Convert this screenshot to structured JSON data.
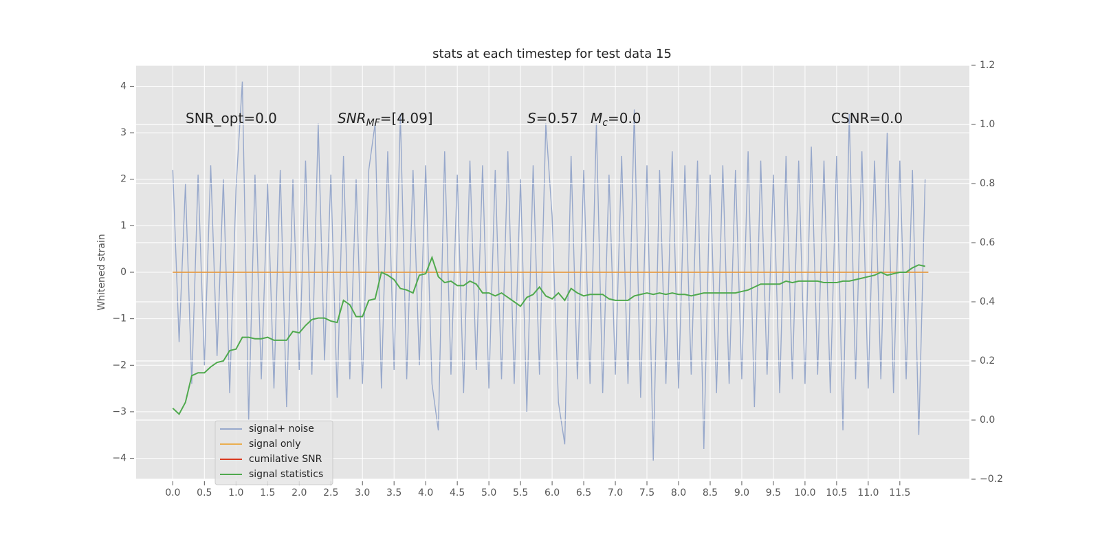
{
  "chart_data": {
    "type": "line",
    "title": "stats at each timestep for test data 15",
    "ylabel": "Whitened strain",
    "annotations": [
      {
        "text": "SNR_opt=0.0"
      },
      {
        "base": "SNR",
        "sub": "MF",
        "rest": "=[4.09]",
        "italic": true
      },
      {
        "base": "S",
        "rest": "=0.57",
        "italic": true
      },
      {
        "base": "M",
        "sub": "c",
        "rest": "=0.0",
        "italic": true
      },
      {
        "text": "CSNR=0.0"
      }
    ],
    "x": [
      0,
      0.1,
      0.2,
      0.3,
      0.4,
      0.5,
      0.6,
      0.7,
      0.8,
      0.9,
      1,
      1.1,
      1.2,
      1.3,
      1.4,
      1.5,
      1.6,
      1.7,
      1.8,
      1.9,
      2,
      2.1,
      2.2,
      2.3,
      2.4,
      2.5,
      2.6,
      2.7,
      2.8,
      2.9,
      3,
      3.1,
      3.2,
      3.3,
      3.4,
      3.5,
      3.6,
      3.7,
      3.8,
      3.9,
      4,
      4.1,
      4.2,
      4.3,
      4.4,
      4.5,
      4.6,
      4.7,
      4.8,
      4.9,
      5,
      5.1,
      5.2,
      5.3,
      5.4,
      5.5,
      5.6,
      5.7,
      5.8,
      5.9,
      6,
      6.1,
      6.2,
      6.3,
      6.4,
      6.5,
      6.6,
      6.7,
      6.8,
      6.9,
      7,
      7.1,
      7.2,
      7.3,
      7.4,
      7.5,
      7.6,
      7.7,
      7.8,
      7.9,
      8,
      8.1,
      8.2,
      8.3,
      8.4,
      8.5,
      8.6,
      8.7,
      8.8,
      8.9,
      9,
      9.1,
      9.2,
      9.3,
      9.4,
      9.5,
      9.6,
      9.7,
      9.8,
      9.9,
      10,
      10.1,
      10.2,
      10.3,
      10.4,
      10.5,
      10.6,
      10.7,
      10.8,
      10.9,
      11,
      11.1,
      11.2,
      11.3,
      11.4,
      11.5,
      11.6,
      11.7,
      11.8,
      11.9
    ],
    "series": [
      {
        "name": "signal+ noise",
        "color": "#97a8cb",
        "values": [
          2.2,
          -1.5,
          1.9,
          -2.4,
          2.1,
          -2.0,
          2.3,
          -1.8,
          2.0,
          -2.6,
          1.8,
          4.1,
          -3.2,
          2.1,
          -2.3,
          1.9,
          -2.5,
          2.2,
          -2.9,
          2.0,
          -2.1,
          2.4,
          -2.2,
          3.2,
          -1.9,
          2.1,
          -2.7,
          2.5,
          -2.3,
          2.0,
          -2.4,
          2.2,
          3.2,
          -2.5,
          2.6,
          -2.1,
          3.4,
          -2.3,
          2.2,
          -2.0,
          2.3,
          -2.4,
          -3.4,
          2.6,
          -2.2,
          2.1,
          -2.6,
          2.4,
          -2.1,
          2.3,
          -2.5,
          2.2,
          -2.3,
          2.6,
          -2.4,
          2.0,
          -3.0,
          2.3,
          -2.2,
          3.2,
          1.2,
          -2.8,
          -3.7,
          2.5,
          -2.3,
          2.2,
          -2.4,
          3.2,
          -2.6,
          2.1,
          -2.2,
          2.5,
          -2.4,
          3.5,
          -2.7,
          2.3,
          -4.05,
          2.2,
          -2.4,
          2.6,
          -2.5,
          2.3,
          -2.2,
          2.4,
          -3.8,
          2.1,
          -2.6,
          2.3,
          -2.4,
          2.2,
          -2.3,
          2.6,
          -2.9,
          2.4,
          -2.2,
          2.1,
          -2.6,
          2.5,
          -2.3,
          2.4,
          -2.4,
          2.7,
          -2.2,
          2.4,
          -2.6,
          2.5,
          -3.4,
          3.4,
          -2.3,
          2.6,
          -2.5,
          2.4,
          -2.3,
          3.0,
          -2.6,
          2.4,
          -2.3,
          2.2,
          -3.5,
          2.0
        ]
      },
      {
        "name": "signal only",
        "color": "#eaae4e",
        "x": [
          0,
          11.95
        ],
        "values": [
          0,
          0
        ]
      },
      {
        "name": "cumilative SNR",
        "color": "#d9381e",
        "x": [
          0,
          11.95
        ],
        "values": [
          0,
          0
        ]
      },
      {
        "name": "signal statistics",
        "color": "#4fa94d",
        "axis": "y2",
        "values": [
          0.04,
          0.02,
          0.06,
          0.15,
          0.16,
          0.16,
          0.18,
          0.195,
          0.2,
          0.235,
          0.24,
          0.28,
          0.28,
          0.275,
          0.275,
          0.28,
          0.27,
          0.27,
          0.27,
          0.3,
          0.295,
          0.32,
          0.34,
          0.345,
          0.345,
          0.335,
          0.33,
          0.405,
          0.39,
          0.35,
          0.35,
          0.405,
          0.41,
          0.5,
          0.49,
          0.475,
          0.445,
          0.44,
          0.43,
          0.49,
          0.495,
          0.55,
          0.485,
          0.465,
          0.47,
          0.455,
          0.455,
          0.47,
          0.46,
          0.43,
          0.43,
          0.42,
          0.43,
          0.415,
          0.4,
          0.385,
          0.415,
          0.425,
          0.45,
          0.42,
          0.41,
          0.43,
          0.405,
          0.445,
          0.43,
          0.42,
          0.425,
          0.425,
          0.425,
          0.41,
          0.405,
          0.405,
          0.405,
          0.42,
          0.425,
          0.43,
          0.425,
          0.43,
          0.425,
          0.43,
          0.425,
          0.425,
          0.42,
          0.425,
          0.43,
          0.43,
          0.43,
          0.43,
          0.43,
          0.43,
          0.435,
          0.44,
          0.45,
          0.46,
          0.46,
          0.46,
          0.46,
          0.47,
          0.465,
          0.47,
          0.47,
          0.47,
          0.47,
          0.465,
          0.465,
          0.465,
          0.47,
          0.47,
          0.475,
          0.48,
          0.485,
          0.49,
          0.5,
          0.49,
          0.495,
          0.5,
          0.5,
          0.515,
          0.525,
          0.52
        ]
      }
    ],
    "xlim": [
      -0.58,
      12.6
    ],
    "xticks": [
      {
        "value": 0,
        "label": "0.0"
      },
      {
        "value": 0.5,
        "label": "0.5"
      },
      {
        "value": 1,
        "label": "1.0"
      },
      {
        "value": 1.5,
        "label": "1.5"
      },
      {
        "value": 2,
        "label": "2.0"
      },
      {
        "value": 2.5,
        "label": "2.5"
      },
      {
        "value": 3,
        "label": "3.0"
      },
      {
        "value": 3.5,
        "label": "3.5"
      },
      {
        "value": 4,
        "label": "4.0"
      },
      {
        "value": 4.5,
        "label": "4.5"
      },
      {
        "value": 5,
        "label": "5.0"
      },
      {
        "value": 5.5,
        "label": "5.5"
      },
      {
        "value": 6,
        "label": "6.0"
      },
      {
        "value": 6.5,
        "label": "6.5"
      },
      {
        "value": 7,
        "label": "7.0"
      },
      {
        "value": 7.5,
        "label": "7.5"
      },
      {
        "value": 8,
        "label": "8.0"
      },
      {
        "value": 8.5,
        "label": "8.5"
      },
      {
        "value": 9,
        "label": "9.0"
      },
      {
        "value": 9.5,
        "label": "9.5"
      },
      {
        "value": 10,
        "label": "10.0"
      },
      {
        "value": 10.5,
        "label": "10.5"
      },
      {
        "value": 11,
        "label": "11.0"
      },
      {
        "value": 11.5,
        "label": "11.5"
      }
    ],
    "ylim": [
      -4.45,
      4.45
    ],
    "yticks": [
      {
        "value": -4,
        "label": "−4"
      },
      {
        "value": -3,
        "label": "−3"
      },
      {
        "value": -2,
        "label": "−2"
      },
      {
        "value": -1,
        "label": "−1"
      },
      0,
      1,
      2,
      3,
      4
    ],
    "y2lim": [
      -0.2,
      1.2
    ],
    "y2ticks": [
      {
        "value": -0.2,
        "label": "−0.2"
      },
      {
        "value": 0,
        "label": "0.0"
      },
      {
        "value": 0.2,
        "label": "0.2"
      },
      {
        "value": 0.4,
        "label": "0.4"
      },
      {
        "value": 0.6,
        "label": "0.6"
      },
      {
        "value": 0.8,
        "label": "0.8"
      },
      {
        "value": 1,
        "label": "1.0"
      },
      {
        "value": 1.2,
        "label": "1.2"
      }
    ],
    "grid": true,
    "legend": "lower left"
  }
}
